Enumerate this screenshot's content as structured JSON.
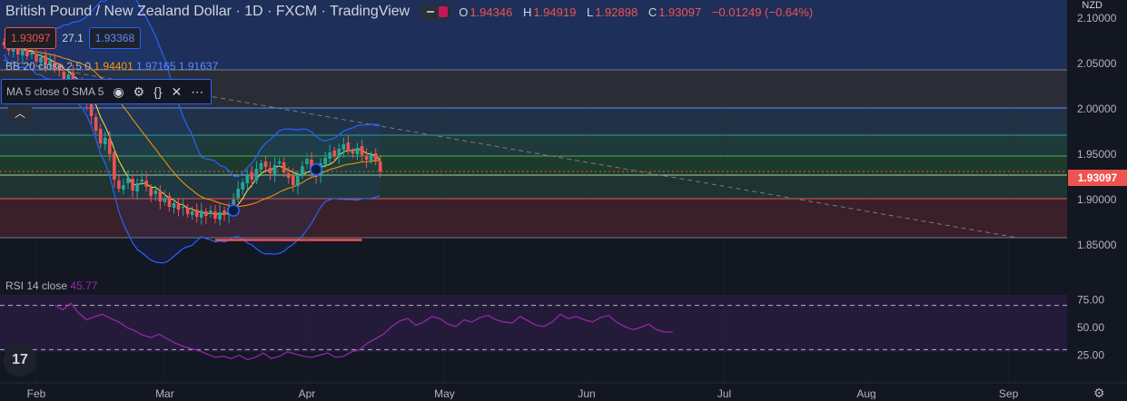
{
  "header": {
    "title": "British Pound / New Zealand Dollar · 1D · FXCM · TradingView",
    "ohlc": {
      "o": "1.94346",
      "h": "1.94919",
      "l": "1.92898",
      "c": "1.93097",
      "change": "−0.01249 (−0.64%)"
    }
  },
  "trade": {
    "sell": "1.93097",
    "spread": "27.1",
    "buy": "1.93368"
  },
  "bb_legend": {
    "name": "BB 20 close 2.5 0",
    "basis": "1.94401",
    "upper": "1.97165",
    "lower": "1.91637"
  },
  "ma_legend": {
    "name": "MA 5 close 0 SMA 5",
    "icons": [
      "eye-icon",
      "gear-icon",
      "braces-icon",
      "close-icon",
      "more-icon"
    ]
  },
  "rsi_legend": {
    "name": "RSI 14 close",
    "value": "45.77"
  },
  "currency": "NZD",
  "current_price": "1.93097",
  "colors": {
    "up": "#26a69a",
    "down": "#ef5350",
    "bb": "#2962ff",
    "ma": "#ffeb3b",
    "basis": "#ff9800",
    "rsi": "#9c27b0"
  },
  "chart_data": {
    "type": "candlestick",
    "title": "British Pound / New Zealand Dollar, 1D, FXCM",
    "y_axis": {
      "min": 1.83,
      "max": 2.12,
      "ticks": [
        "2.10000",
        "2.05000",
        "2.00000",
        "1.95000",
        "1.90000",
        "1.85000"
      ],
      "tick_values": [
        2.1,
        2.05,
        2.0,
        1.95,
        1.9,
        1.85
      ]
    },
    "x_axis": {
      "labels": [
        "Feb",
        "Mar",
        "Apr",
        "May",
        "Jun",
        "Jul",
        "Aug",
        "Sep"
      ],
      "label_day": [
        0,
        28,
        59,
        89,
        120,
        150,
        181,
        212
      ]
    },
    "fib_levels": [
      2.043,
      2.001,
      1.971,
      1.948,
      1.927,
      1.901,
      1.858
    ],
    "zones": [
      {
        "from": 2.043,
        "to": 2.12,
        "color": "#1e2f5a"
      },
      {
        "from": 2.001,
        "to": 2.043,
        "color": "#2a2d36"
      },
      {
        "from": 1.971,
        "to": 2.001,
        "color": "#213247"
      },
      {
        "from": 1.948,
        "to": 1.971,
        "color": "#1f3a3a"
      },
      {
        "from": 1.927,
        "to": 1.948,
        "color": "#1e3a2c"
      },
      {
        "from": 1.901,
        "to": 1.927,
        "color": "#1f3330"
      },
      {
        "from": 1.858,
        "to": 1.901,
        "color": "#3a2028"
      }
    ],
    "closes": [
      2.07,
      2.064,
      2.071,
      2.06,
      2.066,
      2.058,
      2.062,
      2.052,
      2.057,
      2.049,
      2.053,
      2.045,
      2.042,
      2.032,
      2.038,
      2.024,
      2.03,
      2.018,
      2.006,
      1.992,
      1.976,
      1.962,
      1.968,
      1.95,
      1.922,
      1.912,
      1.916,
      1.924,
      1.91,
      1.918,
      1.922,
      1.914,
      1.904,
      1.91,
      1.898,
      1.902,
      1.892,
      1.896,
      1.889,
      1.892,
      1.884,
      1.887,
      1.881,
      1.888,
      1.882,
      1.888,
      1.879,
      1.886,
      1.884,
      1.891,
      1.9,
      1.912,
      1.919,
      1.928,
      1.922,
      1.934,
      1.94,
      1.936,
      1.929,
      1.938,
      1.942,
      1.93,
      1.924,
      1.916,
      1.928,
      1.937,
      1.945,
      1.931,
      1.925,
      1.94,
      1.946,
      1.952,
      1.948,
      1.956,
      1.961,
      1.954,
      1.951,
      1.957,
      1.949,
      1.944,
      1.949,
      1.943,
      1.931
    ],
    "candle_start_day": -7,
    "rsi": {
      "values": [
        70,
        66,
        72,
        63,
        57,
        60,
        62,
        58,
        55,
        50,
        47,
        43,
        41,
        44,
        40,
        36,
        33,
        31,
        29,
        26,
        23,
        24,
        22,
        25,
        21,
        23,
        27,
        22,
        24,
        28,
        26,
        24,
        23,
        25,
        27,
        23,
        24,
        28,
        30,
        36,
        40,
        44,
        51,
        56,
        58,
        52,
        55,
        60,
        58,
        53,
        51,
        57,
        55,
        59,
        61,
        57,
        55,
        54,
        60,
        56,
        52,
        51,
        55,
        62,
        58,
        60,
        57,
        55,
        59,
        61,
        55,
        51,
        48,
        50,
        53,
        48,
        46,
        45.77
      ],
      "levels": [
        70,
        30
      ],
      "ticks": [
        "75.00",
        "50.00",
        "25.00"
      ],
      "tick_values": [
        75,
        50,
        25
      ],
      "start_day": 4
    },
    "trendline": {
      "from": [
        -30,
        2.074
      ],
      "to": [
        214,
        1.858
      ]
    },
    "support_mark": {
      "from_day": 39,
      "to_day": 71,
      "price": 1.8555
    }
  }
}
